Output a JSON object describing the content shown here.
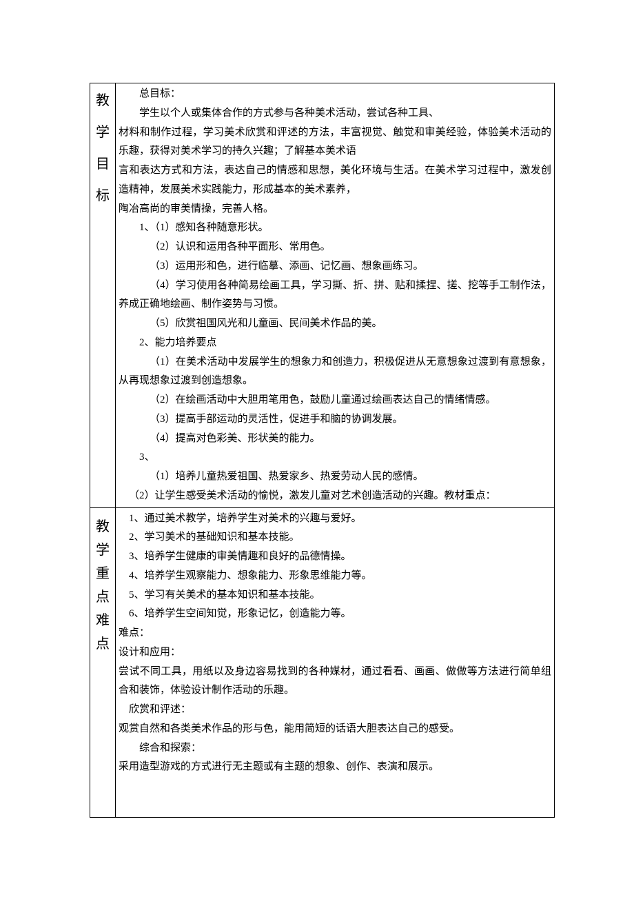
{
  "document": {
    "type": "lesson-plan-table",
    "font_family": "SimSun",
    "font_size_body": 15,
    "font_size_label": 20,
    "text_color": "#000000",
    "border_color": "#000000",
    "background_color": "#ffffff"
  },
  "rows": {
    "goals": {
      "label_chars": [
        "教",
        "学",
        "目",
        "标"
      ],
      "sections": {
        "overall": {
          "heading": "总目标：",
          "paragraphs": [
            "学生以个人或集体合作的方式参与各种美术活动，尝试各种工具、",
            "材料和制作过程，学习美术欣赏和评述的方法，丰富视觉、触觉和审美经验，体验美术活动的乐趣，获得对美术学习的持久兴趣；了解基本美术语",
            "言和表达方式和方法，表达自己的情感和思想，美化环境与生活。在美术学习过程中，激发创造精神，发展美术实践能力，形成基本的美术素养，",
            "陶冶高尚的审美情操，完善人格。"
          ]
        },
        "point1": {
          "heading": "1、（1）感知各种随意形状。",
          "items": [
            "（2）认识和运用各种平面形、常用色。",
            "（3）运用形和色，进行临摹、添画、记忆画、想象画练习。",
            "（4）学习使用各种简易绘画工具，学习撕、折、拼、贴和揉捏、搓、挖等手工制作法，养成正确地绘画、制作姿势与习惯。",
            "（5）欣赏祖国风光和儿童画、民间美术作品的美。"
          ]
        },
        "point2": {
          "heading": "2、能力培养要点",
          "items": [
            "（1）在美术活动中发展学生的想象力和创造力，积极促进从无意想象过渡到有意想象，从再现想象过渡到创造想象。",
            "（2）在绘画活动中大胆用笔用色，鼓励儿童通过绘画表达自己的情绪情感。",
            "（3）提高手部运动的灵活性，促进手和脑的协调发展。",
            "（4）提高对色彩美、形状美的能力。"
          ]
        },
        "point3": {
          "heading": "3、",
          "items": [
            "（1）培养儿童热爱祖国、热爱家乡、热爱劳动人民的感情。",
            "（2）让学生感受美术活动的愉悦，激发儿童对艺术创造活动的兴趣。教材重点："
          ]
        }
      }
    },
    "key_difficult": {
      "label_chars": [
        "教",
        "学",
        "重",
        "点",
        "难",
        "点"
      ],
      "important": {
        "items": [
          "1、通过美术教学，培养学生对美术的兴趣与爱好。",
          "2、学习美术的基础知识和基本技能。",
          "3、培养学生健康的审美情趣和良好的品德情操。",
          "4、培养学生观察能力、想象能力、形象思维能力等。",
          "5、学习有关美术的基本知识和基本技能。",
          "6、培养学生空间知觉，形象记忆，创造能力等。"
        ]
      },
      "difficult": {
        "heading": "难点：",
        "sections": [
          {
            "title": "设计和应用：",
            "body": "尝试不同工具，用纸以及身边容易找到的各种媒材，通过看看、画画、做做等方法进行简单组合和装饰，体验设计制作活动的乐趣。"
          },
          {
            "title": "欣赏和评述：",
            "body": "观赏自然和各类美术作品的形与色，能用简短的话语大胆表达自己的感受。"
          },
          {
            "title": "综合和探索：",
            "body": "采用造型游戏的方式进行无主题或有主题的想象、创作、表演和展示。"
          }
        ]
      }
    }
  }
}
